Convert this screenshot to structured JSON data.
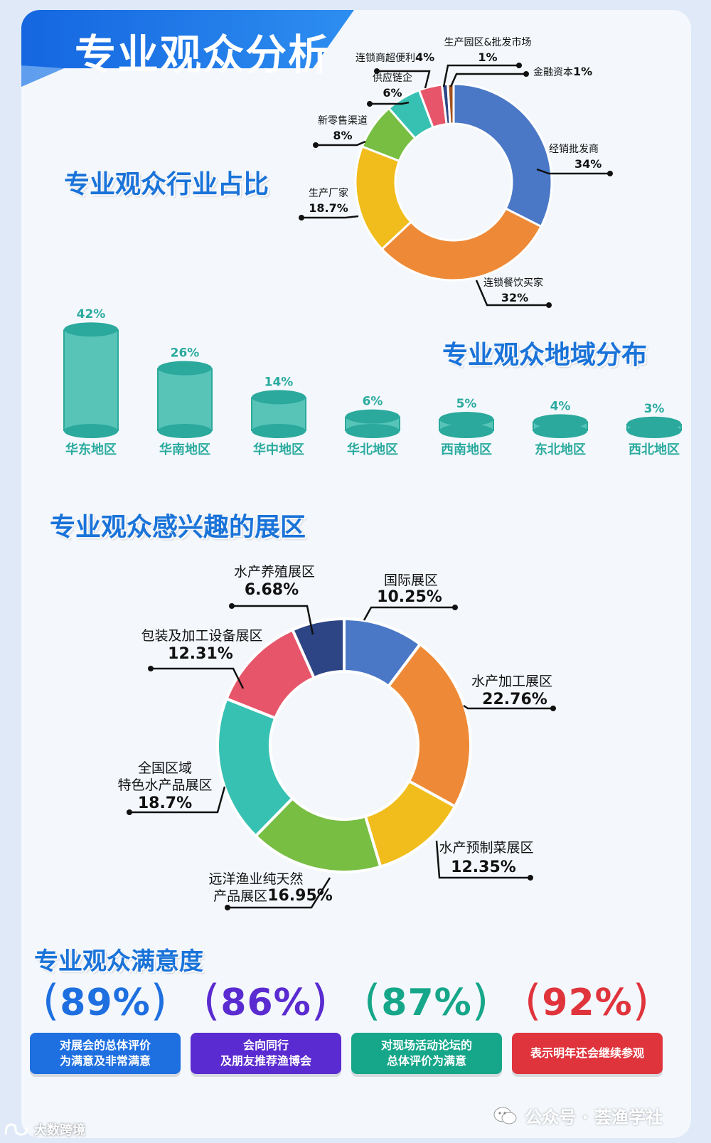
{
  "header": {
    "title": "专业观众分析"
  },
  "sections": {
    "industry": "专业观众行业占比",
    "region": "专业观众地域分布",
    "zones": "专业观众感兴趣的展区",
    "satisfaction": "专业观众满意度"
  },
  "chart_data": [
    {
      "type": "pie",
      "title": "专业观众行业占比",
      "slices": [
        {
          "label": "经销批发商",
          "value": 34,
          "display": "34%",
          "color": "#4a78c7"
        },
        {
          "label": "连锁餐饮买家",
          "value": 32,
          "display": "32%",
          "color": "#ee8a37"
        },
        {
          "label": "生产厂家",
          "value": 18.7,
          "display": "18.7%",
          "color": "#f1bd1c"
        },
        {
          "label": "新零售渠道",
          "value": 8,
          "display": "8%",
          "color": "#77be43"
        },
        {
          "label": "供应链企",
          "value": 6,
          "display": "6%",
          "color": "#37c1b3"
        },
        {
          "label": "连锁商超便利",
          "value": 4,
          "display": "4%",
          "color": "#e6556a"
        },
        {
          "label": "生产园区&批发市场",
          "value": 1,
          "display": "1%",
          "color": "#2d4585"
        },
        {
          "label": "金融资本",
          "value": 1,
          "display": "1%",
          "color": "#a0521d"
        }
      ]
    },
    {
      "type": "bar",
      "title": "专业观众地域分布",
      "categories": [
        "华东地区",
        "华南地区",
        "华中地区",
        "华北地区",
        "西南地区",
        "东北地区",
        "西北地区"
      ],
      "values": [
        42,
        26,
        14,
        6,
        5,
        4,
        3
      ],
      "value_labels": [
        "42%",
        "26%",
        "14%",
        "6%",
        "5%",
        "4%",
        "3%"
      ],
      "color": "#2fb3a7"
    },
    {
      "type": "pie",
      "title": "专业观众感兴趣的展区",
      "slices": [
        {
          "label": "国际展区",
          "value": 10.25,
          "display": "10.25%",
          "color": "#4a78c7"
        },
        {
          "label": "水产加工展区",
          "value": 22.76,
          "display": "22.76%",
          "color": "#ee8a37"
        },
        {
          "label": "水产预制菜展区",
          "value": 12.35,
          "display": "12.35%",
          "color": "#f1bd1c"
        },
        {
          "label": "远洋渔业纯天然产品展区",
          "value": 16.95,
          "display": "16.95%",
          "color": "#77be43"
        },
        {
          "label": "全国区域特色水产品展区",
          "value": 18.7,
          "display": "18.7%",
          "color": "#37c1b3"
        },
        {
          "label": "包装及加工设备展区",
          "value": 12.31,
          "display": "12.31%",
          "color": "#e6556a"
        },
        {
          "label": "水产养殖展区",
          "value": 6.68,
          "display": "6.68%",
          "color": "#2d4585"
        }
      ]
    }
  ],
  "satisfaction": [
    {
      "value": "89%",
      "text": "对展会的总体评价\n为满意及非常满意",
      "color": "#1e6fe0"
    },
    {
      "value": "86%",
      "text": "会向同行\n及朋友推荐渔博会",
      "color": "#5a2bd0"
    },
    {
      "value": "87%",
      "text": "对现场活动论坛的\n总体评价为满意",
      "color": "#16a68a"
    },
    {
      "value": "92%",
      "text": "表示明年还会继续参观",
      "color": "#e0343c"
    }
  ],
  "footer": {
    "right_text": "公众号 · 荟渔学社",
    "left_text": "大数跨境"
  },
  "icons": [
    "wechat-icon",
    "watermark-logo-icon"
  ]
}
